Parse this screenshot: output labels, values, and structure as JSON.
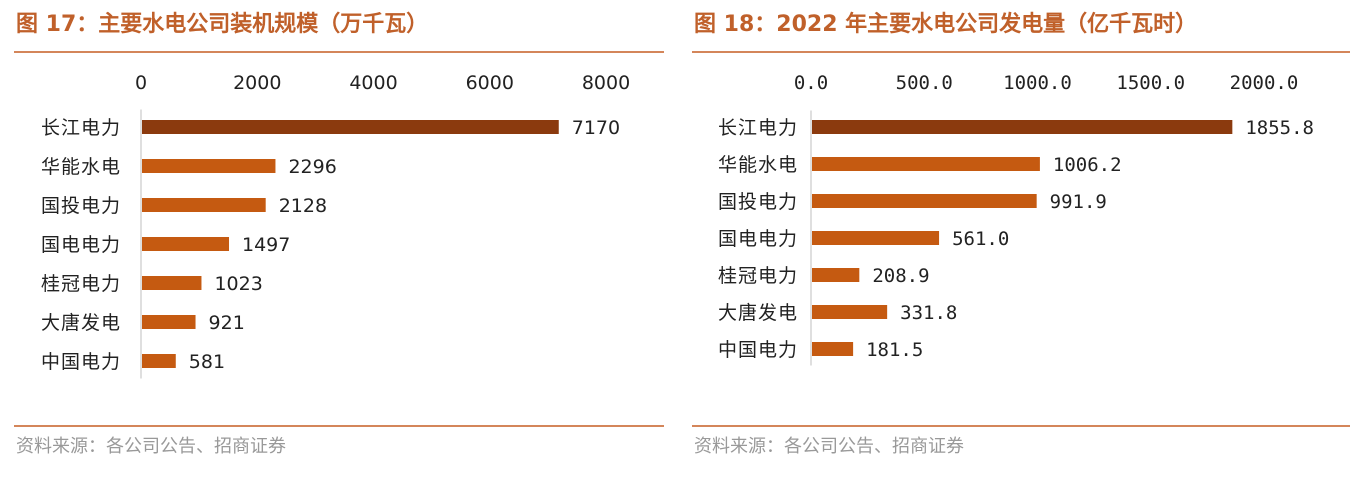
{
  "source_text": "资料来源：各公司公告、招商证券",
  "colors": {
    "accent": "#c0602a",
    "top_bar": "#8b3a0e",
    "bar": "#c55a11",
    "rule": "#d4865a",
    "source": "#999999"
  },
  "chart_data": [
    {
      "type": "bar",
      "orientation": "horizontal",
      "title": "图 17：主要水电公司装机规模（万千瓦）",
      "categories": [
        "长江电力",
        "华能水电",
        "国投电力",
        "国电电力",
        "桂冠电力",
        "大唐发电",
        "中国电力"
      ],
      "values": [
        7170,
        2296,
        2128,
        1497,
        1023,
        921,
        581
      ],
      "value_labels": [
        "7170",
        "2296",
        "2128",
        "1497",
        "1023",
        "921",
        "581"
      ],
      "xlim": [
        0,
        8000
      ],
      "ticks": [
        0,
        2000,
        4000,
        6000,
        8000
      ],
      "tick_labels": [
        "0",
        "2000",
        "4000",
        "6000",
        "8000"
      ],
      "axis_position": "top",
      "grid": false,
      "legend": "none"
    },
    {
      "type": "bar",
      "orientation": "horizontal",
      "title": "图 18：2022 年主要水电公司发电量（亿千瓦时）",
      "categories": [
        "长江电力",
        "华能水电",
        "国投电力",
        "国电电力",
        "桂冠电力",
        "大唐发电",
        "中国电力"
      ],
      "values": [
        1855.8,
        1006.2,
        991.9,
        561.0,
        208.9,
        331.8,
        181.5
      ],
      "value_labels": [
        "1855.8",
        "1006.2",
        "991.9",
        "561.0",
        "208.9",
        "331.8",
        "181.5"
      ],
      "xlim": [
        0,
        2000
      ],
      "ticks": [
        0,
        500,
        1000,
        1500,
        2000
      ],
      "tick_labels": [
        "0.0",
        "500.0",
        "1000.0",
        "1500.0",
        "2000.0"
      ],
      "axis_position": "top",
      "grid": false,
      "legend": "none"
    }
  ]
}
